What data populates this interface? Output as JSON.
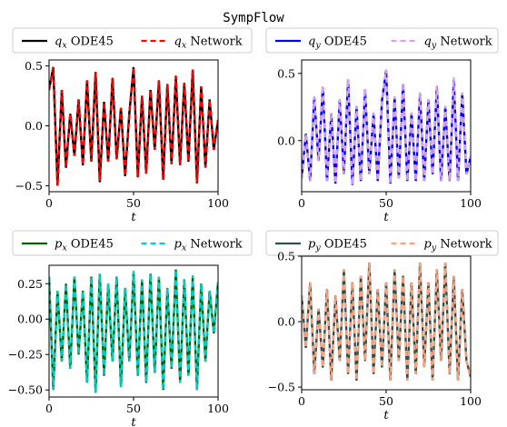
{
  "figure_title": "SympFlow",
  "chart_data": [
    {
      "type": "line",
      "xlabel": "t",
      "xlim": [
        0,
        100
      ],
      "ylim": [
        -0.55,
        0.55
      ],
      "xticks": [
        0,
        50,
        100
      ],
      "yticks": [
        -0.5,
        0.0,
        0.5
      ],
      "yfmt": 1,
      "legend_placement": "above",
      "series": [
        {
          "name": "q_x ODE45",
          "sym": "q",
          "sub": "x",
          "suffix": "ODE45",
          "color": "#000000",
          "style": "solid",
          "x": [
            0,
            2.5,
            5,
            7.5,
            10,
            12.5,
            15,
            17.5,
            20,
            22.5,
            25,
            27.5,
            30,
            32.5,
            35,
            37.5,
            40,
            42.5,
            45,
            47.5,
            50,
            52.5,
            55,
            57.5,
            60,
            62.5,
            65,
            67.5,
            70,
            72.5,
            75,
            77.5,
            80,
            82.5,
            85,
            87.5,
            90,
            92.5,
            95,
            97.5,
            100
          ],
          "y": [
            0.3,
            0.49,
            -0.5,
            0.3,
            -0.35,
            0.1,
            -0.25,
            0.22,
            -0.33,
            0.38,
            -0.3,
            0.45,
            -0.47,
            0.2,
            -0.3,
            0.4,
            -0.28,
            0.15,
            -0.42,
            0.1,
            0.49,
            -0.43,
            0.25,
            -0.4,
            0.3,
            -0.2,
            0.38,
            -0.45,
            0.35,
            -0.32,
            0.41,
            -0.33,
            0.36,
            -0.3,
            0.47,
            -0.48,
            0.33,
            -0.35,
            0.22,
            -0.2,
            0.05
          ]
        },
        {
          "name": "q_x Network",
          "sym": "q",
          "sub": "x",
          "suffix": "Network",
          "color": "#ff0000",
          "style": "dashed",
          "x": [
            0,
            2.5,
            5,
            7.5,
            10,
            12.5,
            15,
            17.5,
            20,
            22.5,
            25,
            27.5,
            30,
            32.5,
            35,
            37.5,
            40,
            42.5,
            45,
            47.5,
            50,
            52.5,
            55,
            57.5,
            60,
            62.5,
            65,
            67.5,
            70,
            72.5,
            75,
            77.5,
            80,
            82.5,
            85,
            87.5,
            90,
            92.5,
            95,
            97.5,
            100
          ],
          "y": [
            0.3,
            0.49,
            -0.5,
            0.3,
            -0.35,
            0.1,
            -0.25,
            0.22,
            -0.33,
            0.38,
            -0.3,
            0.45,
            -0.46,
            0.2,
            -0.3,
            0.4,
            -0.28,
            0.15,
            -0.42,
            0.1,
            0.49,
            -0.43,
            0.25,
            -0.4,
            0.3,
            -0.2,
            0.38,
            -0.45,
            0.35,
            -0.32,
            0.42,
            -0.33,
            0.36,
            -0.3,
            0.47,
            -0.48,
            0.33,
            -0.35,
            0.22,
            -0.2,
            0.05
          ]
        }
      ]
    },
    {
      "type": "line",
      "xlabel": "t",
      "xlim": [
        0,
        100
      ],
      "ylim": [
        -0.38,
        0.6
      ],
      "xticks": [
        0,
        50,
        100
      ],
      "yticks": [
        0.0,
        0.5
      ],
      "yfmt": 1,
      "legend_placement": "above",
      "series": [
        {
          "name": "q_y ODE45",
          "sym": "q",
          "sub": "y",
          "suffix": "ODE45",
          "color": "#0000ff",
          "style": "solid",
          "x": [
            0,
            2.5,
            5,
            7.5,
            10,
            12.5,
            15,
            17.5,
            20,
            22.5,
            25,
            27.5,
            30,
            32.5,
            35,
            37.5,
            40,
            42.5,
            45,
            47.5,
            50,
            52.5,
            55,
            57.5,
            60,
            62.5,
            65,
            67.5,
            70,
            72.5,
            75,
            77.5,
            80,
            82.5,
            85,
            87.5,
            90,
            92.5,
            95,
            97.5,
            100
          ],
          "y": [
            -0.28,
            0.05,
            -0.3,
            0.32,
            -0.15,
            0.4,
            -0.3,
            0.2,
            -0.32,
            0.3,
            -0.25,
            0.45,
            -0.33,
            0.25,
            -0.3,
            0.38,
            -0.25,
            0.2,
            -0.3,
            0.3,
            0.52,
            -0.32,
            0.32,
            -0.28,
            0.42,
            -0.3,
            0.2,
            -0.3,
            0.35,
            -0.3,
            0.3,
            -0.25,
            0.4,
            -0.3,
            0.25,
            -0.3,
            0.45,
            -0.3,
            0.35,
            -0.25,
            -0.12
          ]
        },
        {
          "name": "q_y Network",
          "sym": "q",
          "sub": "y",
          "suffix": "Network",
          "color": "#d8a1e3",
          "style": "dashed",
          "x": [
            0,
            2.5,
            5,
            7.5,
            10,
            12.5,
            15,
            17.5,
            20,
            22.5,
            25,
            27.5,
            30,
            32.5,
            35,
            37.5,
            40,
            42.5,
            45,
            47.5,
            50,
            52.5,
            55,
            57.5,
            60,
            62.5,
            65,
            67.5,
            70,
            72.5,
            75,
            77.5,
            80,
            82.5,
            85,
            87.5,
            90,
            92.5,
            95,
            97.5,
            100
          ],
          "y": [
            -0.28,
            0.05,
            -0.3,
            0.33,
            -0.15,
            0.41,
            -0.3,
            0.21,
            -0.32,
            0.31,
            -0.25,
            0.46,
            -0.33,
            0.26,
            -0.3,
            0.39,
            -0.25,
            0.21,
            -0.3,
            0.31,
            0.53,
            -0.32,
            0.33,
            -0.28,
            0.43,
            -0.3,
            0.21,
            -0.3,
            0.36,
            -0.3,
            0.31,
            -0.25,
            0.41,
            -0.3,
            0.26,
            -0.3,
            0.47,
            -0.3,
            0.36,
            -0.25,
            -0.12
          ]
        }
      ]
    },
    {
      "type": "line",
      "xlabel": "t",
      "xlim": [
        0,
        100
      ],
      "ylim": [
        -0.55,
        0.38
      ],
      "xticks": [
        0,
        50,
        100
      ],
      "yticks": [
        -0.5,
        -0.25,
        0.0,
        0.25
      ],
      "yfmt": 2,
      "legend_placement": "above",
      "series": [
        {
          "name": "p_x ODE45",
          "sym": "p",
          "sub": "x",
          "suffix": "ODE45",
          "color": "#006400",
          "style": "solid",
          "x": [
            0,
            2.5,
            5,
            7.5,
            10,
            12.5,
            15,
            17.5,
            20,
            22.5,
            25,
            27.5,
            30,
            32.5,
            35,
            37.5,
            40,
            42.5,
            45,
            47.5,
            50,
            52.5,
            55,
            57.5,
            60,
            62.5,
            65,
            67.5,
            70,
            72.5,
            75,
            77.5,
            80,
            82.5,
            85,
            87.5,
            90,
            92.5,
            95,
            97.5,
            100
          ],
          "y": [
            0.3,
            -0.5,
            0.2,
            -0.3,
            0.25,
            -0.35,
            0.3,
            -0.25,
            0.2,
            -0.45,
            0.3,
            -0.52,
            0.32,
            -0.4,
            0.25,
            -0.3,
            0.3,
            -0.48,
            0.22,
            -0.3,
            0.33,
            -0.4,
            0.28,
            -0.45,
            0.32,
            -0.38,
            0.3,
            -0.5,
            0.22,
            -0.35,
            0.35,
            -0.45,
            0.28,
            -0.4,
            0.3,
            -0.5,
            0.25,
            -0.3,
            0.2,
            -0.1,
            0.26
          ]
        },
        {
          "name": "p_x Network",
          "sym": "p",
          "sub": "x",
          "suffix": "Network",
          "color": "#00cccc",
          "style": "dashed",
          "x": [
            0,
            2.5,
            5,
            7.5,
            10,
            12.5,
            15,
            17.5,
            20,
            22.5,
            25,
            27.5,
            30,
            32.5,
            35,
            37.5,
            40,
            42.5,
            45,
            47.5,
            50,
            52.5,
            55,
            57.5,
            60,
            62.5,
            65,
            67.5,
            70,
            72.5,
            75,
            77.5,
            80,
            82.5,
            85,
            87.5,
            90,
            92.5,
            95,
            97.5,
            100
          ],
          "y": [
            0.3,
            -0.5,
            0.2,
            -0.3,
            0.25,
            -0.35,
            0.3,
            -0.25,
            0.2,
            -0.45,
            0.3,
            -0.52,
            0.32,
            -0.4,
            0.25,
            -0.3,
            0.3,
            -0.48,
            0.22,
            -0.3,
            0.34,
            -0.4,
            0.28,
            -0.45,
            0.32,
            -0.38,
            0.3,
            -0.5,
            0.22,
            -0.35,
            0.35,
            -0.45,
            0.28,
            -0.4,
            0.31,
            -0.5,
            0.25,
            -0.3,
            0.2,
            -0.1,
            0.26
          ]
        }
      ]
    },
    {
      "type": "line",
      "xlabel": "t",
      "xlim": [
        0,
        100
      ],
      "ylim": [
        -0.52,
        0.5
      ],
      "xticks": [
        0,
        50,
        100
      ],
      "yticks": [
        -0.5,
        0.0,
        0.5
      ],
      "yfmt": 1,
      "legend_placement": "above",
      "series": [
        {
          "name": "p_y ODE45",
          "sym": "p",
          "sub": "y",
          "suffix": "ODE45",
          "color": "#2f4f4f",
          "style": "solid",
          "x": [
            0,
            2.5,
            5,
            7.5,
            10,
            12.5,
            15,
            17.5,
            20,
            22.5,
            25,
            27.5,
            30,
            32.5,
            35,
            37.5,
            40,
            42.5,
            45,
            47.5,
            50,
            52.5,
            55,
            57.5,
            60,
            62.5,
            65,
            67.5,
            70,
            72.5,
            75,
            77.5,
            80,
            82.5,
            85,
            87.5,
            90,
            92.5,
            95,
            97.5,
            100
          ],
          "y": [
            0.2,
            -0.2,
            0.3,
            -0.4,
            0.1,
            -0.35,
            0.25,
            -0.45,
            0.2,
            -0.3,
            0.4,
            -0.4,
            0.3,
            -0.45,
            0.35,
            -0.3,
            0.45,
            -0.4,
            0.25,
            -0.35,
            0.3,
            -0.45,
            0.4,
            -0.3,
            0.35,
            -0.45,
            0.3,
            -0.4,
            0.45,
            -0.35,
            0.3,
            -0.45,
            0.4,
            -0.3,
            0.45,
            -0.4,
            0.35,
            -0.45,
            0.25,
            -0.3,
            -0.42
          ]
        },
        {
          "name": "p_y Network",
          "sym": "p",
          "sub": "y",
          "suffix": "Network",
          "color": "#ffa07a",
          "style": "dashed",
          "x": [
            0,
            2.5,
            5,
            7.5,
            10,
            12.5,
            15,
            17.5,
            20,
            22.5,
            25,
            27.5,
            30,
            32.5,
            35,
            37.5,
            40,
            42.5,
            45,
            47.5,
            50,
            52.5,
            55,
            57.5,
            60,
            62.5,
            65,
            67.5,
            70,
            72.5,
            75,
            77.5,
            80,
            82.5,
            85,
            87.5,
            90,
            92.5,
            95,
            97.5,
            100
          ],
          "y": [
            0.2,
            -0.2,
            0.3,
            -0.4,
            0.1,
            -0.35,
            0.25,
            -0.45,
            0.2,
            -0.3,
            0.4,
            -0.4,
            0.3,
            -0.45,
            0.35,
            -0.3,
            0.45,
            -0.4,
            0.25,
            -0.35,
            0.3,
            -0.45,
            0.4,
            -0.3,
            0.35,
            -0.45,
            0.3,
            -0.4,
            0.45,
            -0.35,
            0.3,
            -0.45,
            0.4,
            -0.3,
            0.45,
            -0.4,
            0.35,
            -0.45,
            0.25,
            -0.3,
            -0.42
          ]
        }
      ]
    }
  ]
}
